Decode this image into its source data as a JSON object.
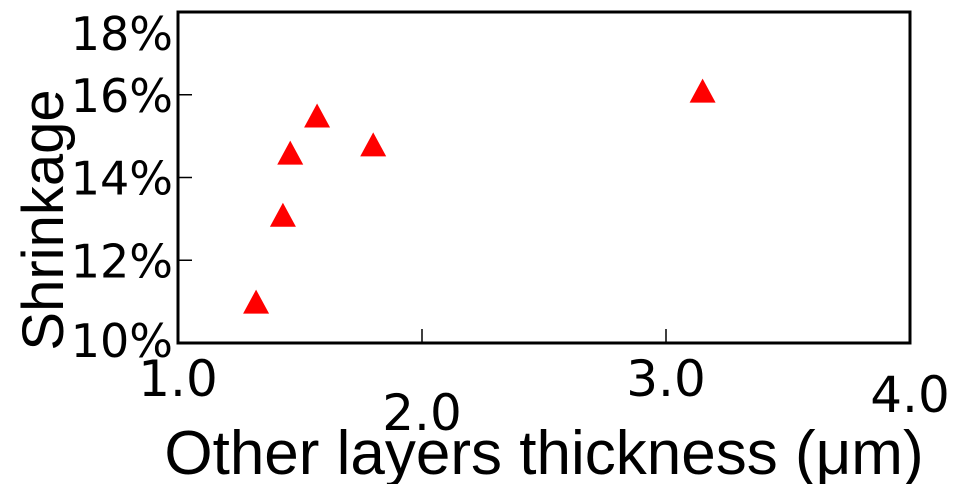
{
  "chart_data": {
    "type": "scatter",
    "title": "",
    "xlabel": "Other layers thickness (μm)",
    "ylabel": "Shrinkage",
    "xlim": [
      1.0,
      4.0
    ],
    "ylim": [
      0.1,
      0.18
    ],
    "x_ticks": [
      1.0,
      2.0,
      3.0,
      4.0
    ],
    "x_tick_labels": [
      "1.0",
      "2.0",
      "3.0",
      "4.0"
    ],
    "y_ticks": [
      0.1,
      0.12,
      0.14,
      0.16,
      0.18
    ],
    "y_tick_labels": [
      "10%",
      "12%",
      "14%",
      "16%",
      "18%"
    ],
    "grid": false,
    "legend": "none",
    "series": [
      {
        "marker": "triangle",
        "color": "#ff0000",
        "points": [
          {
            "x": 1.32,
            "y": 0.11
          },
          {
            "x": 1.43,
            "y": 0.131
          },
          {
            "x": 1.46,
            "y": 0.146
          },
          {
            "x": 1.57,
            "y": 0.155
          },
          {
            "x": 1.8,
            "y": 0.148
          },
          {
            "x": 3.15,
            "y": 0.161
          }
        ]
      }
    ]
  }
}
